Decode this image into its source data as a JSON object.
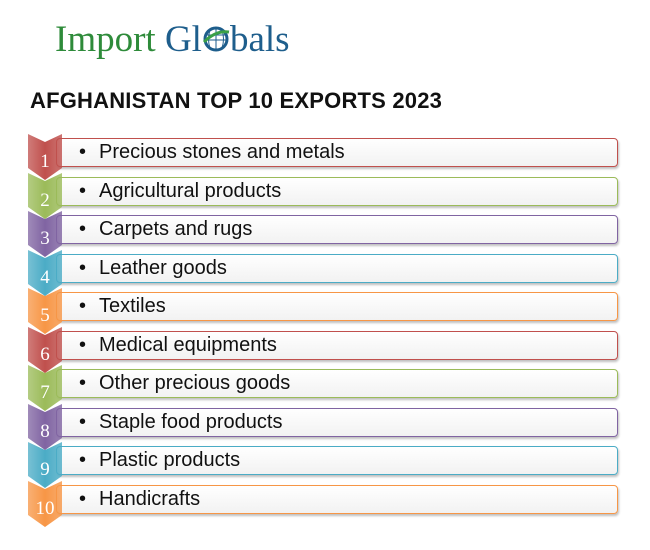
{
  "logo": {
    "part1": "Import",
    "part2_a": "Gl",
    "part2_b": "bals"
  },
  "title": "AFGHANISTAN TOP 10 EXPORTS 2023",
  "items": [
    {
      "rank": "1",
      "label": "Precious stones and metals",
      "color": "#c0504d"
    },
    {
      "rank": "2",
      "label": "Agricultural products",
      "color": "#9bbb59"
    },
    {
      "rank": "3",
      "label": "Carpets and rugs",
      "color": "#8064a2"
    },
    {
      "rank": "4",
      "label": "Leather goods",
      "color": "#4bacc6"
    },
    {
      "rank": "5",
      "label": "Textiles",
      "color": "#f79646"
    },
    {
      "rank": "6",
      "label": "Medical equipments",
      "color": "#c0504d"
    },
    {
      "rank": "7",
      "label": "Other precious goods",
      "color": "#9bbb59"
    },
    {
      "rank": "8",
      "label": "Staple food products",
      "color": "#8064a2"
    },
    {
      "rank": "9",
      "label": "Plastic products",
      "color": "#4bacc6"
    },
    {
      "rank": "10",
      "label": "Handicrafts",
      "color": "#f79646"
    }
  ]
}
